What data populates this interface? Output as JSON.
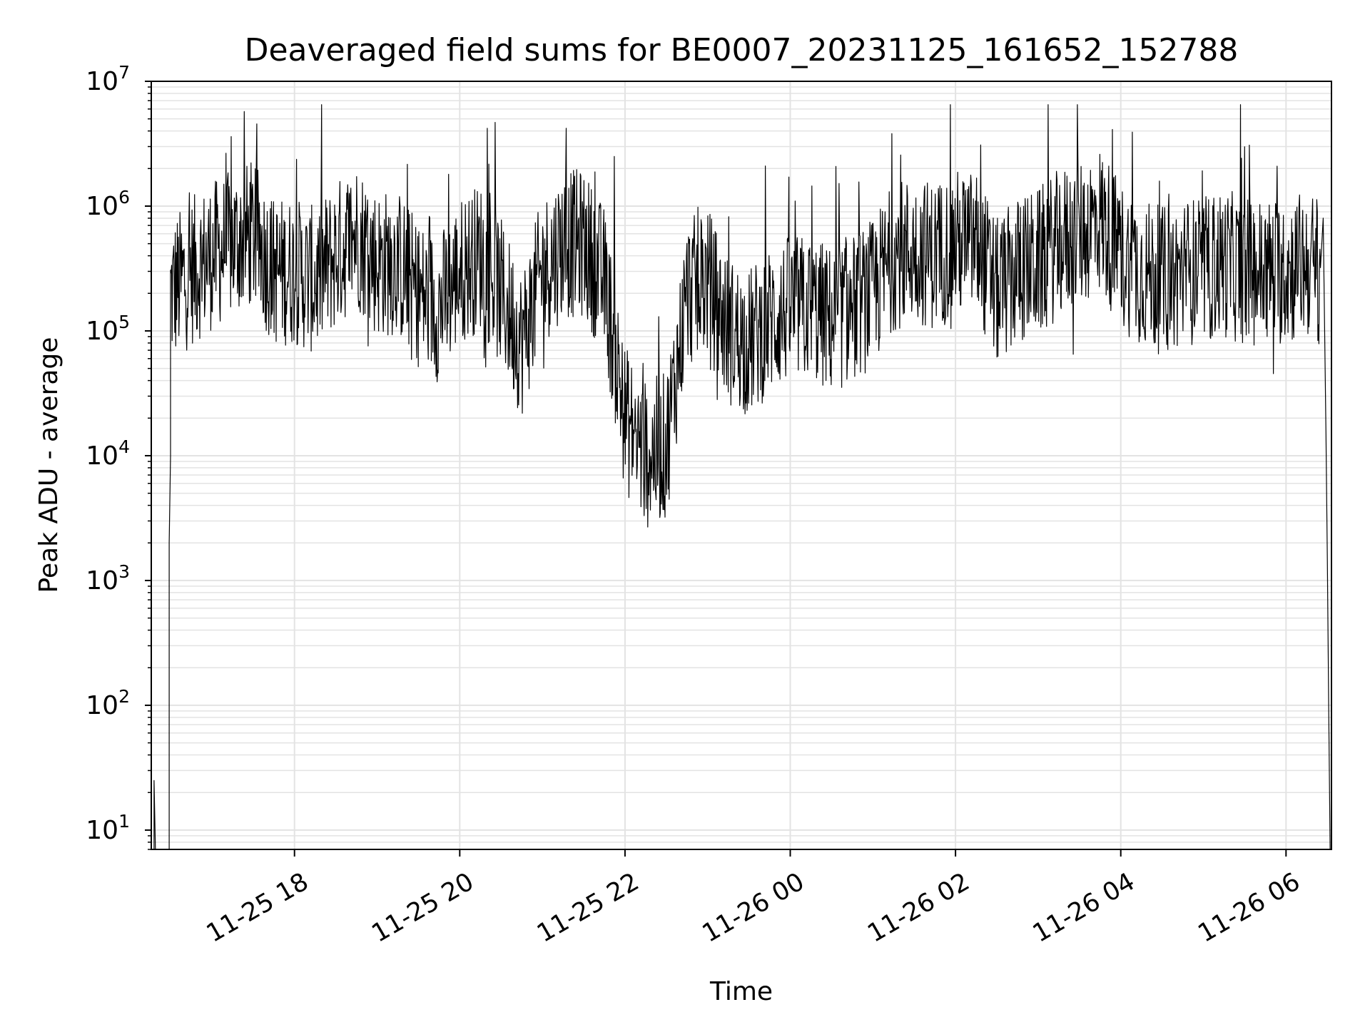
{
  "chart_data": {
    "type": "line",
    "title": "Deaveraged field sums for BE0007_20231125_161652_152788",
    "xlabel": "Time",
    "ylabel": "Peak ADU - average",
    "x_ticks": [
      "2023-11-25 18:00",
      "2023-11-25 20:00",
      "2023-11-25 22:00",
      "2023-11-26 00:00",
      "2023-11-26 02:00",
      "2023-11-26 04:00",
      "2023-11-26 06:00"
    ],
    "x_tick_labels": [
      "11-25 18",
      "11-25 20",
      "11-25 22",
      "11-26 00",
      "11-26 02",
      "11-26 04",
      "11-26 06"
    ],
    "xlim": [
      "2023-11-25 16:16",
      "2023-11-26 06:33"
    ],
    "y_scale": "log",
    "ylim": [
      7,
      10000000
    ],
    "y_ticks": [
      10,
      100,
      1000,
      10000,
      100000,
      1000000,
      10000000
    ],
    "y_tick_labels": [
      {
        "base": "10",
        "exp": "1"
      },
      {
        "base": "10",
        "exp": "2"
      },
      {
        "base": "10",
        "exp": "3"
      },
      {
        "base": "10",
        "exp": "4"
      },
      {
        "base": "10",
        "exp": "5"
      },
      {
        "base": "10",
        "exp": "6"
      },
      {
        "base": "10",
        "exp": "7"
      }
    ],
    "grid": true,
    "line_color": "#000000",
    "grid_color": "#e3e3e3",
    "series": [
      {
        "x": [
          "2023-11-25 16:20",
          "2023-11-25 16:30",
          "2023-11-25 16:45",
          "2023-11-25 17:00",
          "2023-11-25 17:15",
          "2023-11-25 17:30",
          "2023-11-25 17:45",
          "2023-11-25 18:00",
          "2023-11-25 18:15",
          "2023-11-25 18:30",
          "2023-11-25 18:45",
          "2023-11-25 19:00",
          "2023-11-25 19:15",
          "2023-11-25 19:30",
          "2023-11-25 19:45",
          "2023-11-25 20:00",
          "2023-11-25 20:15",
          "2023-11-25 20:30",
          "2023-11-25 20:45",
          "2023-11-25 21:00",
          "2023-11-25 21:15",
          "2023-11-25 21:30",
          "2023-11-25 21:45",
          "2023-11-25 22:00",
          "2023-11-25 22:15",
          "2023-11-25 22:30",
          "2023-11-25 22:45",
          "2023-11-25 23:00",
          "2023-11-25 23:15",
          "2023-11-25 23:30",
          "2023-11-25 23:45",
          "2023-11-26 00:00",
          "2023-11-26 00:15",
          "2023-11-26 00:30",
          "2023-11-26 00:45",
          "2023-11-26 01:00",
          "2023-11-26 01:15",
          "2023-11-26 01:30",
          "2023-11-26 01:45",
          "2023-11-26 02:00",
          "2023-11-26 02:15",
          "2023-11-26 02:30",
          "2023-11-26 02:45",
          "2023-11-26 03:00",
          "2023-11-26 03:15",
          "2023-11-26 03:30",
          "2023-11-26 03:45",
          "2023-11-26 04:00",
          "2023-11-26 04:15",
          "2023-11-26 04:30",
          "2023-11-26 04:45",
          "2023-11-26 05:00",
          "2023-11-26 05:15",
          "2023-11-26 05:30",
          "2023-11-26 05:45",
          "2023-11-26 06:00",
          "2023-11-26 06:15",
          "2023-11-26 06:25",
          "2023-11-26 06:31"
        ],
        "y": [
          10,
          200000,
          300000,
          400000,
          500000,
          600000,
          300000,
          300000,
          250000,
          400000,
          600000,
          350000,
          350000,
          200000,
          150000,
          300000,
          400000,
          200000,
          80000,
          300000,
          500000,
          500000,
          250000,
          20000,
          10000,
          12000,
          200000,
          250000,
          100000,
          80000,
          120000,
          150000,
          150000,
          120000,
          150000,
          200000,
          400000,
          450000,
          400000,
          500000,
          500000,
          200000,
          300000,
          350000,
          500000,
          600000,
          800000,
          400000,
          300000,
          250000,
          300000,
          300000,
          350000,
          300000,
          300000,
          300000,
          350000,
          300000,
          10
        ]
      }
    ]
  }
}
